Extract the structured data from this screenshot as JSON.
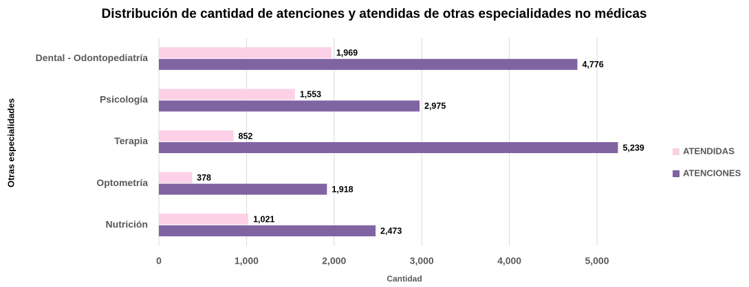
{
  "chart_data": {
    "type": "bar",
    "orientation": "horizontal",
    "title": "Distribución de cantidad de atenciones y atendidas de otras especialidades no médicas",
    "x_label": "Cantidad",
    "y_label": "Otras especialidades",
    "categories": [
      "Dental - Odontopediatría",
      "Psicología",
      "Terapia",
      "Optometría",
      "Nutrición"
    ],
    "series": [
      {
        "name": "ATENDIDAS",
        "color": "#fcd1e8",
        "values": [
          1969,
          1553,
          852,
          378,
          1021
        ],
        "value_labels": [
          "1,969",
          "1,553",
          "852",
          "378",
          "1,021"
        ]
      },
      {
        "name": "ATENCIONES",
        "color": "#8064a2",
        "values": [
          4776,
          2975,
          5239,
          1918,
          2473
        ],
        "value_labels": [
          "4,776",
          "2,975",
          "5,239",
          "1,918",
          "2,473"
        ]
      }
    ],
    "xlim": [
      0,
      5500
    ],
    "xticks": [
      0,
      {
        "value": 1000,
        "label": "1,000"
      },
      {
        "value": 2000,
        "label": "2,000"
      },
      {
        "value": 3000,
        "label": "3,000"
      },
      {
        "value": 4000,
        "label": "4,000"
      },
      {
        "value": 5000,
        "label": "5,000"
      }
    ],
    "grid": true,
    "legend": "right"
  }
}
